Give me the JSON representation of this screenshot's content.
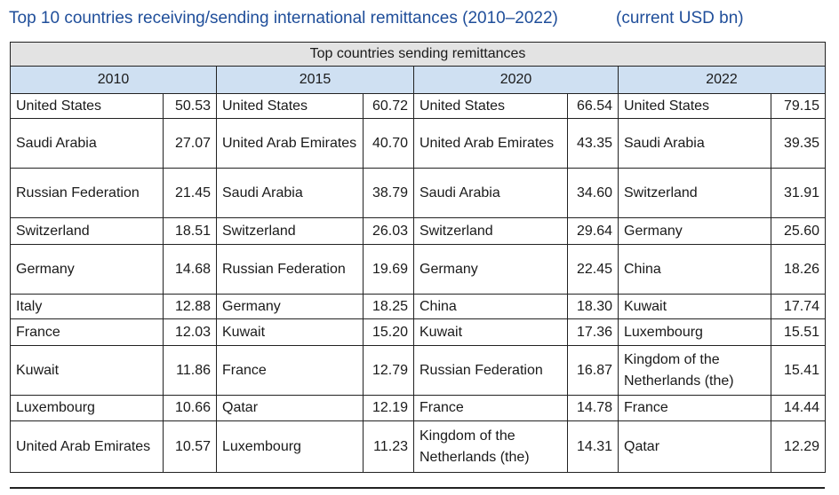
{
  "title": "Top 10 countries receiving/sending international remittances (2010–2022)",
  "unit": "(current USD bn)",
  "table": {
    "caption": "Top countries sending remittances",
    "years": [
      "2010",
      "2015",
      "2020",
      "2022"
    ],
    "rows": [
      [
        [
          "United States",
          "50.53"
        ],
        [
          "United States",
          "60.72"
        ],
        [
          "United States",
          "66.54"
        ],
        [
          "United States",
          "79.15"
        ]
      ],
      [
        [
          "Saudi Arabia",
          "27.07"
        ],
        [
          "United Arab Emirates",
          "40.70"
        ],
        [
          "United Arab Emirates",
          "43.35"
        ],
        [
          "Saudi Arabia",
          "39.35"
        ]
      ],
      [
        [
          "Russian Federation",
          "21.45"
        ],
        [
          "Saudi Arabia",
          "38.79"
        ],
        [
          "Saudi Arabia",
          "34.60"
        ],
        [
          "Switzerland",
          "31.91"
        ]
      ],
      [
        [
          "Switzerland",
          "18.51"
        ],
        [
          "Switzerland",
          "26.03"
        ],
        [
          "Switzerland",
          "29.64"
        ],
        [
          "Germany",
          "25.60"
        ]
      ],
      [
        [
          "Germany",
          "14.68"
        ],
        [
          "Russian Federation",
          "19.69"
        ],
        [
          "Germany",
          "22.45"
        ],
        [
          "China",
          "18.26"
        ]
      ],
      [
        [
          "Italy",
          "12.88"
        ],
        [
          "Germany",
          "18.25"
        ],
        [
          "China",
          "18.30"
        ],
        [
          "Kuwait",
          "17.74"
        ]
      ],
      [
        [
          "France",
          "12.03"
        ],
        [
          "Kuwait",
          "15.20"
        ],
        [
          "Kuwait",
          "17.36"
        ],
        [
          "Luxembourg",
          "15.51"
        ]
      ],
      [
        [
          "Kuwait",
          "11.86"
        ],
        [
          "France",
          "12.79"
        ],
        [
          "Russian Federation",
          "16.87"
        ],
        [
          "Kingdom of the Netherlands (the)",
          "15.41"
        ]
      ],
      [
        [
          "Luxembourg",
          "10.66"
        ],
        [
          "Qatar",
          "12.19"
        ],
        [
          "France",
          "14.78"
        ],
        [
          "France",
          "14.44"
        ]
      ],
      [
        [
          "United Arab Emirates",
          "10.57"
        ],
        [
          "Luxembourg",
          "11.23"
        ],
        [
          "Kingdom of the Netherlands (the)",
          "14.31"
        ],
        [
          "Qatar",
          "12.29"
        ]
      ]
    ]
  }
}
